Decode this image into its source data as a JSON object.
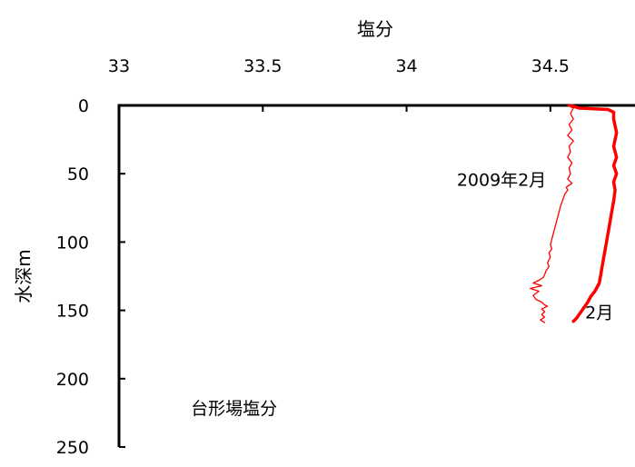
{
  "chart_data": {
    "type": "line",
    "title": "",
    "xlabel": "塩分",
    "ylabel": "水深m",
    "x_axis_position": "top",
    "y_axis_inverted": true,
    "xlim": [
      33,
      34.75
    ],
    "ylim": [
      0,
      250
    ],
    "x_ticks": [
      {
        "value": 33,
        "label": "33"
      },
      {
        "value": 33.5,
        "label": "33.5"
      },
      {
        "value": 34,
        "label": "34"
      },
      {
        "value": 34.5,
        "label": "34.5"
      }
    ],
    "y_ticks": [
      {
        "value": 0,
        "label": "0"
      },
      {
        "value": 50,
        "label": "50"
      },
      {
        "value": 100,
        "label": "100"
      },
      {
        "value": 150,
        "label": "150"
      },
      {
        "value": 200,
        "label": "200"
      },
      {
        "value": 250,
        "label": "250"
      }
    ],
    "grid": false,
    "legend": "none",
    "series": [
      {
        "name": "2009年2月",
        "color": "#ff0000",
        "style": "thin",
        "points": [
          [
            34.56,
            0
          ],
          [
            34.58,
            2
          ],
          [
            34.57,
            6
          ],
          [
            34.58,
            10
          ],
          [
            34.565,
            14
          ],
          [
            34.575,
            18
          ],
          [
            34.56,
            22
          ],
          [
            34.58,
            26
          ],
          [
            34.565,
            30
          ],
          [
            34.57,
            34
          ],
          [
            34.56,
            38
          ],
          [
            34.575,
            42
          ],
          [
            34.565,
            46
          ],
          [
            34.57,
            50
          ],
          [
            34.56,
            54
          ],
          [
            34.575,
            57
          ],
          [
            34.555,
            60
          ],
          [
            34.56,
            62
          ],
          [
            34.55,
            65
          ],
          [
            34.545,
            68
          ],
          [
            34.54,
            71
          ],
          [
            34.535,
            74
          ],
          [
            34.53,
            78
          ],
          [
            34.525,
            82
          ],
          [
            34.52,
            86
          ],
          [
            34.515,
            90
          ],
          [
            34.51,
            94
          ],
          [
            34.505,
            98
          ],
          [
            34.5,
            102
          ],
          [
            34.505,
            105
          ],
          [
            34.495,
            108
          ],
          [
            34.5,
            111
          ],
          [
            34.49,
            115
          ],
          [
            34.495,
            118
          ],
          [
            34.485,
            121
          ],
          [
            34.48,
            124
          ],
          [
            34.475,
            126
          ],
          [
            34.46,
            128
          ],
          [
            34.44,
            130
          ],
          [
            34.47,
            132
          ],
          [
            34.43,
            134
          ],
          [
            34.46,
            136
          ],
          [
            34.44,
            139
          ],
          [
            34.45,
            142
          ],
          [
            34.47,
            144
          ],
          [
            34.48,
            146
          ],
          [
            34.49,
            147
          ],
          [
            34.47,
            149
          ],
          [
            34.48,
            151
          ],
          [
            34.47,
            153
          ],
          [
            34.48,
            155
          ],
          [
            34.465,
            157
          ],
          [
            34.48,
            159
          ]
        ]
      },
      {
        "name": "2月",
        "color": "#ff0000",
        "style": "thick",
        "points": [
          [
            34.57,
            0
          ],
          [
            34.6,
            2
          ],
          [
            34.7,
            3
          ],
          [
            34.72,
            5
          ],
          [
            34.72,
            10
          ],
          [
            34.73,
            20
          ],
          [
            34.72,
            30
          ],
          [
            34.73,
            38
          ],
          [
            34.72,
            44
          ],
          [
            34.73,
            50
          ],
          [
            34.72,
            56
          ],
          [
            34.725,
            62
          ],
          [
            34.72,
            70
          ],
          [
            34.715,
            76
          ],
          [
            34.71,
            82
          ],
          [
            34.705,
            88
          ],
          [
            34.7,
            94
          ],
          [
            34.695,
            100
          ],
          [
            34.69,
            106
          ],
          [
            34.685,
            112
          ],
          [
            34.68,
            118
          ],
          [
            34.675,
            124
          ],
          [
            34.67,
            130
          ],
          [
            34.655,
            136
          ],
          [
            34.64,
            140
          ],
          [
            34.63,
            144
          ],
          [
            34.62,
            147
          ],
          [
            34.61,
            150
          ],
          [
            34.6,
            153
          ],
          [
            34.59,
            156
          ],
          [
            34.58,
            158
          ]
        ]
      }
    ],
    "annotations": [
      {
        "text": "2009年2月",
        "x": 34.33,
        "y": 55
      },
      {
        "text": "2月",
        "x": 34.67,
        "y": 152
      },
      {
        "text": "台形場塩分",
        "x": 33.4,
        "y": 222
      }
    ]
  }
}
